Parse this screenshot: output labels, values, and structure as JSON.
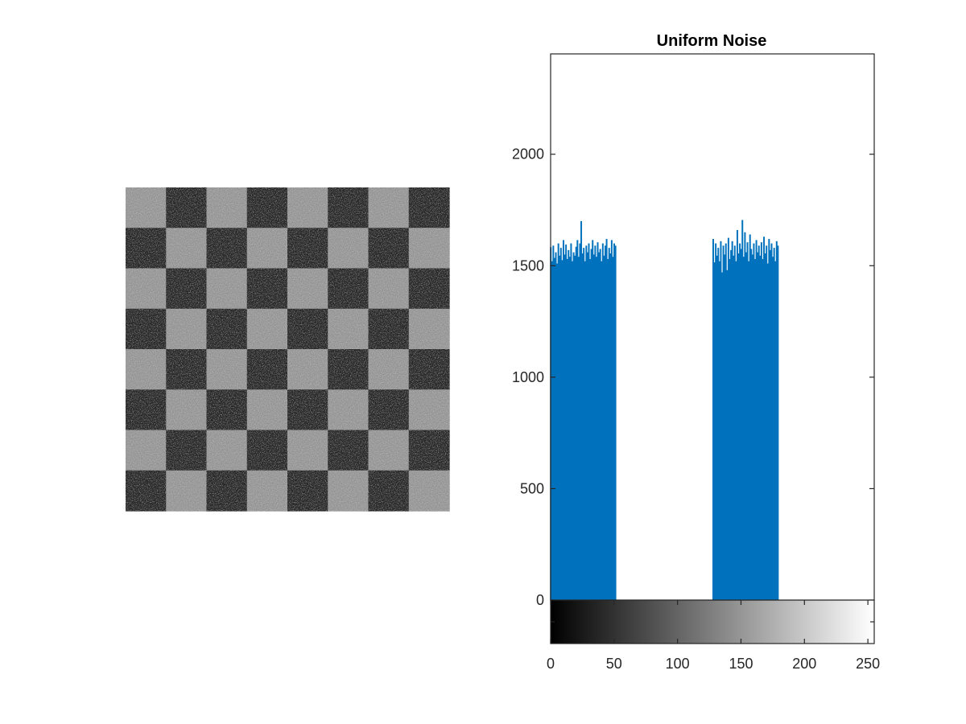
{
  "chart_data": [
    {
      "type": "image",
      "content": "checkerboard with uniform noise",
      "grid_cells": [
        8,
        8
      ],
      "top_left_cell_shade": "light",
      "colors": {
        "light": "#9a9a9a",
        "dark": "#2a2a2a"
      }
    },
    {
      "type": "bar",
      "title": "Uniform Noise",
      "xlabel": "",
      "ylabel": "",
      "xlim": [
        0,
        255
      ],
      "ylim": [
        0,
        2450
      ],
      "xticks": [
        0,
        50,
        100,
        150,
        200,
        250
      ],
      "yticks": [
        0,
        500,
        1000,
        1500,
        2000
      ],
      "grid": false,
      "bar_color": "#0072bd",
      "colorbar": {
        "range": [
          0,
          255
        ],
        "colormap": "gray"
      },
      "series": [
        {
          "x": [
            0,
            1,
            2,
            3,
            4,
            5,
            6,
            7,
            8,
            9,
            10,
            11,
            12,
            13,
            14,
            15,
            16,
            17,
            18,
            19,
            20,
            21,
            22,
            23,
            24,
            25,
            26,
            27,
            28,
            29,
            30,
            31,
            32,
            33,
            34,
            35,
            36,
            37,
            38,
            39,
            40,
            41,
            42,
            43,
            44,
            45,
            46,
            47,
            48,
            49,
            50,
            51
          ],
          "values": [
            1583,
            1520,
            1590,
            1535,
            1560,
            1510,
            1600,
            1545,
            1580,
            1525,
            1615,
            1550,
            1595,
            1530,
            1570,
            1540,
            1600,
            1520,
            1560,
            1545,
            1585,
            1615,
            1540,
            1600,
            1700,
            1555,
            1580,
            1520,
            1590,
            1560,
            1600,
            1530,
            1575,
            1615,
            1550,
            1590,
            1540,
            1605,
            1560,
            1575,
            1520,
            1600,
            1545,
            1590,
            1620,
            1530,
            1580,
            1555,
            1615,
            1540,
            1600,
            1590
          ]
        },
        {
          "x": [
            128,
            129,
            130,
            131,
            132,
            133,
            134,
            135,
            136,
            137,
            138,
            139,
            140,
            141,
            142,
            143,
            144,
            145,
            146,
            147,
            148,
            149,
            150,
            151,
            152,
            153,
            154,
            155,
            156,
            157,
            158,
            159,
            160,
            161,
            162,
            163,
            164,
            165,
            166,
            167,
            168,
            169,
            170,
            171,
            172,
            173,
            174,
            175,
            176,
            177,
            178,
            179
          ],
          "values": [
            1620,
            1515,
            1600,
            1545,
            1580,
            1520,
            1610,
            1470,
            1590,
            1550,
            1600,
            1480,
            1625,
            1530,
            1570,
            1610,
            1545,
            1590,
            1520,
            1660,
            1555,
            1600,
            1575,
            1705,
            1540,
            1650,
            1560,
            1605,
            1520,
            1640,
            1575,
            1550,
            1600,
            1530,
            1615,
            1560,
            1590,
            1545,
            1605,
            1530,
            1630,
            1555,
            1590,
            1510,
            1620,
            1570,
            1600,
            1540,
            1580,
            1520,
            1610,
            1590
          ]
        }
      ]
    }
  ]
}
